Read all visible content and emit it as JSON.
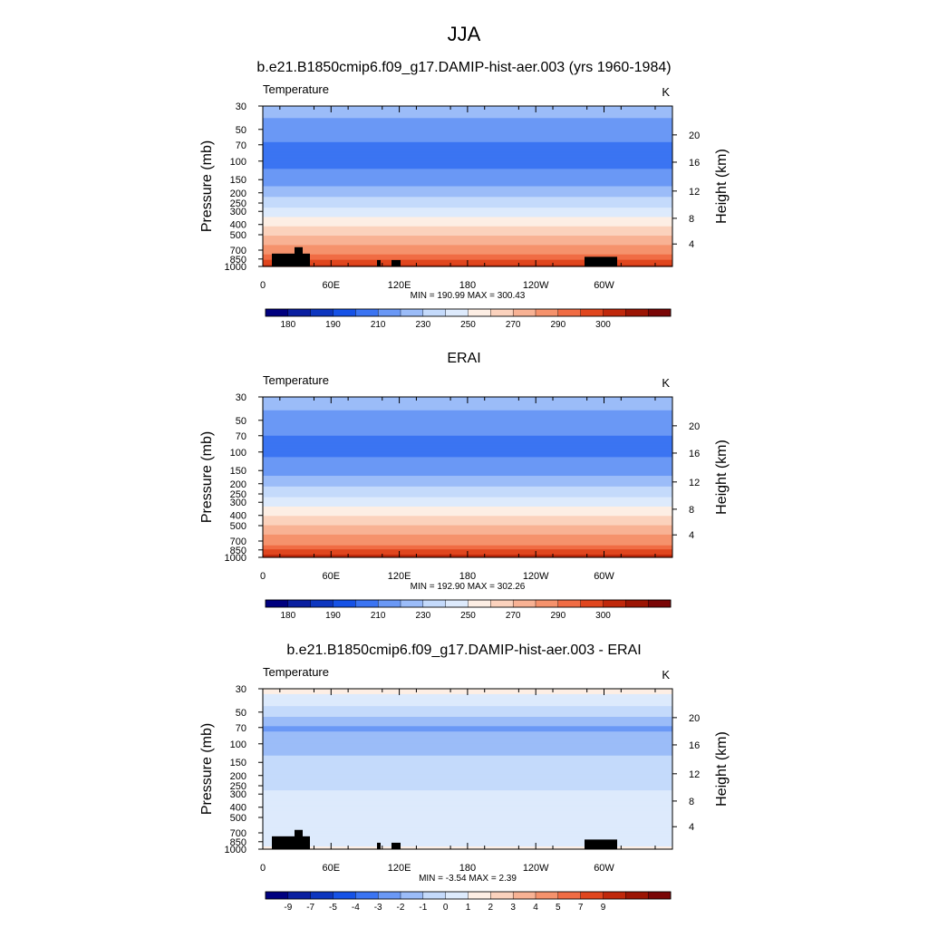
{
  "main_title": "JJA",
  "colors": {
    "abs_levels": [
      "#00007f",
      "#0a1fa0",
      "#0d36bf",
      "#1652e6",
      "#3b74f2",
      "#6a98f5",
      "#9bbcf8",
      "#c4dafb",
      "#ddeafc",
      "#fdeee4",
      "#fbd2bd",
      "#f8b294",
      "#f5926c",
      "#f06c44",
      "#e0461e",
      "#c0280b",
      "#9c1504",
      "#7a0606"
    ],
    "diff_levels": [
      "#00007f",
      "#0a1fa0",
      "#0d36bf",
      "#1652e6",
      "#3b74f2",
      "#6a98f5",
      "#9bbcf8",
      "#c4dafb",
      "#ddeafc",
      "#fdeee4",
      "#fbd2bd",
      "#f8b294",
      "#f5926c",
      "#f06c44",
      "#e0461e",
      "#c0280b",
      "#9c1504",
      "#7a0606"
    ],
    "topography": "#000000"
  },
  "panels": [
    {
      "title": "b.e21.B1850cmip6.f09_g17.DAMIP-hist-aer.003 (yrs 1960-1984)",
      "left_label": "Temperature",
      "right_label": "K",
      "stats": "MIN = 190.99  MAX = 300.43"
    },
    {
      "title": "ERAI",
      "left_label": "Temperature",
      "right_label": "K",
      "stats": "MIN = 192.90  MAX = 302.26"
    },
    {
      "title": "b.e21.B1850cmip6.f09_g17.DAMIP-hist-aer.003 - ERAI",
      "left_label": "Temperature",
      "right_label": "K",
      "stats": "MIN =  -3.54  MAX =   2.39"
    }
  ],
  "chart_data": [
    {
      "type": "heatmap",
      "title": "b.e21.B1850cmip6.f09_g17.DAMIP-hist-aer.003 (yrs 1960-1984)",
      "ylabel": "Pressure (mb)",
      "y2label": "Height (km)",
      "xticks": [
        "0",
        "60E",
        "120E",
        "180",
        "120W",
        "60W"
      ],
      "yticks": [
        "30",
        "50",
        "70",
        "100",
        "150",
        "200",
        "250",
        "300",
        "400",
        "500",
        "700",
        "850",
        "1000"
      ],
      "y2ticks": [
        "20",
        "16",
        "12",
        "8",
        "4"
      ],
      "colorbar_labels": [
        "180",
        "190",
        "210",
        "230",
        "250",
        "270",
        "290",
        "300"
      ],
      "profile": [
        [
          30,
          214
        ],
        [
          50,
          206
        ],
        [
          70,
          199
        ],
        [
          100,
          197
        ],
        [
          150,
          204
        ],
        [
          200,
          216
        ],
        [
          250,
          225
        ],
        [
          300,
          234
        ],
        [
          400,
          248
        ],
        [
          500,
          259
        ],
        [
          700,
          275
        ],
        [
          850,
          284
        ],
        [
          1000,
          291
        ]
      ],
      "min": 190.99,
      "max": 300.43
    },
    {
      "type": "heatmap",
      "title": "ERAI",
      "ylabel": "Pressure (mb)",
      "y2label": "Height (km)",
      "xticks": [
        "0",
        "60E",
        "120E",
        "180",
        "120W",
        "60W"
      ],
      "yticks": [
        "30",
        "50",
        "70",
        "100",
        "150",
        "200",
        "250",
        "300",
        "400",
        "500",
        "700",
        "850",
        "1000"
      ],
      "y2ticks": [
        "20",
        "16",
        "12",
        "8",
        "4"
      ],
      "colorbar_labels": [
        "180",
        "190",
        "210",
        "230",
        "250",
        "270",
        "290",
        "300"
      ],
      "profile": [
        [
          30,
          214
        ],
        [
          50,
          207
        ],
        [
          70,
          200
        ],
        [
          100,
          198
        ],
        [
          150,
          205
        ],
        [
          200,
          217
        ],
        [
          250,
          226
        ],
        [
          300,
          235
        ],
        [
          400,
          249
        ],
        [
          500,
          260
        ],
        [
          700,
          276
        ],
        [
          850,
          285
        ],
        [
          1000,
          293
        ]
      ],
      "min": 192.9,
      "max": 302.26
    },
    {
      "type": "heatmap",
      "title": "b.e21.B1850cmip6.f09_g17.DAMIP-hist-aer.003 - ERAI",
      "ylabel": "Pressure (mb)",
      "y2label": "Height (km)",
      "xticks": [
        "0",
        "60E",
        "120E",
        "180",
        "120W",
        "60W"
      ],
      "yticks": [
        "30",
        "50",
        "70",
        "100",
        "150",
        "200",
        "250",
        "300",
        "400",
        "500",
        "700",
        "850",
        "1000"
      ],
      "y2ticks": [
        "20",
        "16",
        "12",
        "8",
        "4"
      ],
      "colorbar_labels": [
        "-9",
        "-7",
        "-5",
        "-4",
        "-3",
        "-2",
        "-1",
        "0",
        "1",
        "2",
        "3",
        "4",
        "5",
        "7",
        "9"
      ],
      "profile": [
        [
          30,
          0.5
        ],
        [
          50,
          -1.5
        ],
        [
          70,
          -3.2
        ],
        [
          100,
          -2.5
        ],
        [
          150,
          -1.7
        ],
        [
          200,
          -1.5
        ],
        [
          250,
          -1.2
        ],
        [
          300,
          -0.8
        ],
        [
          400,
          -0.5
        ],
        [
          500,
          -0.4
        ],
        [
          700,
          -0.3
        ],
        [
          850,
          -0.3
        ],
        [
          1000,
          0.2
        ]
      ],
      "min": -3.54,
      "max": 2.39
    }
  ]
}
